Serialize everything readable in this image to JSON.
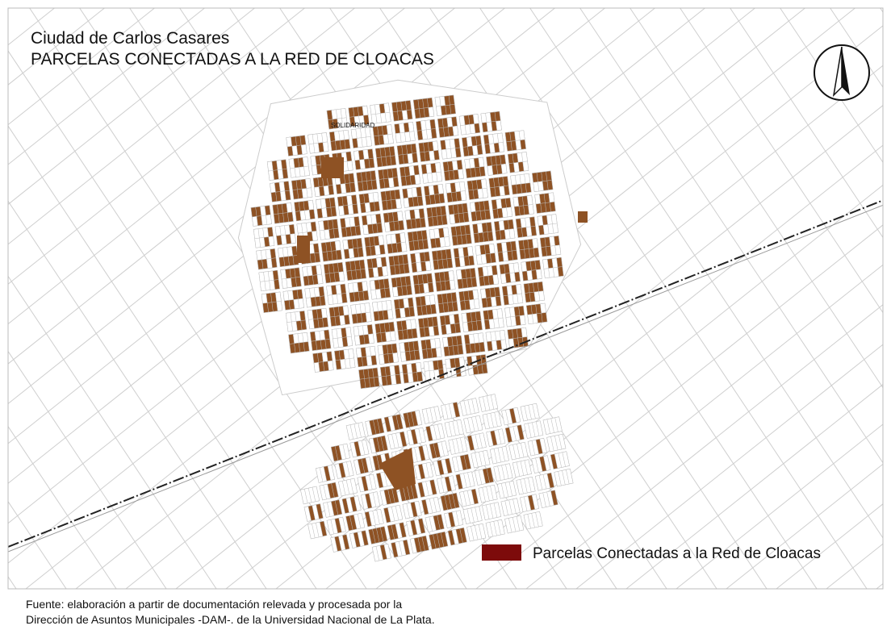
{
  "map": {
    "title": "Ciudad de Carlos Casares",
    "subtitle": "PARCELAS CONECTADAS A LA RED DE CLOACAS",
    "place_label": "SOLIDARIDAD",
    "parcel_color": "#8e5224",
    "legend": {
      "label": "Parcelas Conectadas a la Red de Cloacas",
      "color": "#7d0b0b"
    },
    "source": [
      "Fuente: elaboración a partir de documentación  relevada y procesada por la",
      "Dirección de Asuntos Municipales -DAM-. de la Universidad Nacional de La Plata."
    ]
  }
}
